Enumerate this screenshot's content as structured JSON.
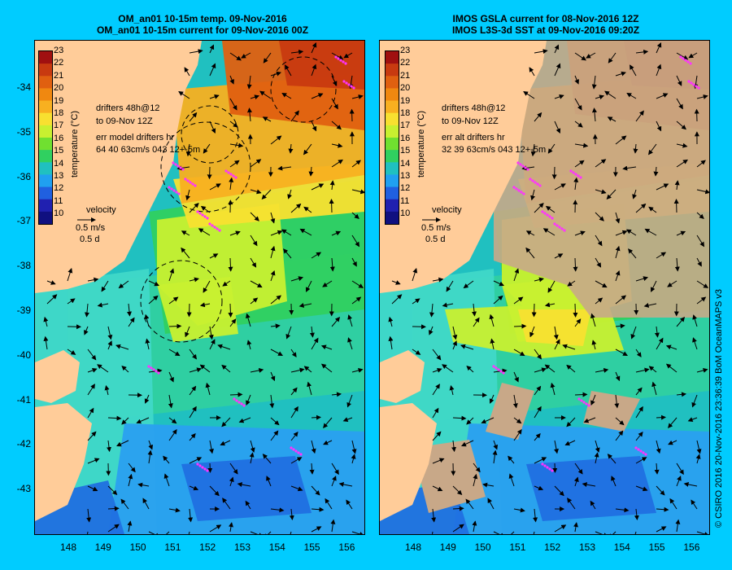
{
  "colors": {
    "background": "#00ccff",
    "land": "#ffcc99",
    "no_data": "#c8a888",
    "drifter": "#ff33ff",
    "arrow": "#000000"
  },
  "left_panel": {
    "title_line1": "OM_an01 10-15m temp. 09-Nov-2016",
    "title_line2": "OM_an01 10-15m current for 09-Nov-2016 00Z",
    "legend_line1": "drifters 48h@12",
    "legend_line2": "to 09-Nov 12Z",
    "legend_line3": "err model drifters hr",
    "legend_line4": "64 40 63cm/s 043 12+-5m"
  },
  "right_panel": {
    "title_line1": "IMOS GSLA current for 08-Nov-2016 12Z",
    "title_line2": "IMOS L3S-3d SST at 09-Nov-2016 09:20Z",
    "legend_line1": "drifters 48h@12",
    "legend_line2": "to 09-Nov 12Z",
    "legend_line3": "err alt drifters hr",
    "legend_line4": "32 39 63cm/s 043 12+-5m"
  },
  "velocity_legend": {
    "label": "velocity",
    "speed": "0.5 m/s",
    "duration": "0.5 d"
  },
  "colorbar": {
    "title": "temperature (°C)",
    "ticks": [
      "23",
      "22",
      "21",
      "20",
      "19",
      "18",
      "17",
      "16",
      "15",
      "14",
      "13",
      "12",
      "11",
      "10"
    ],
    "colors": [
      "#a01010",
      "#c83a10",
      "#e06010",
      "#f08810",
      "#f8b020",
      "#f8e030",
      "#c8f030",
      "#70e030",
      "#30d060",
      "#20c0c0",
      "#20a0f0",
      "#2060e0",
      "#2020b0",
      "#101080"
    ]
  },
  "lat_labels": [
    "-34",
    "-35",
    "-36",
    "-37",
    "-38",
    "-39",
    "-40",
    "-41",
    "-42",
    "-43"
  ],
  "lon_labels": [
    "148",
    "149",
    "150",
    "151",
    "152",
    "153",
    "154",
    "155",
    "156"
  ],
  "credit": "© CSIRO 2016   20-Nov-2016 23:36:39 BoM OceanMAPS v3"
}
